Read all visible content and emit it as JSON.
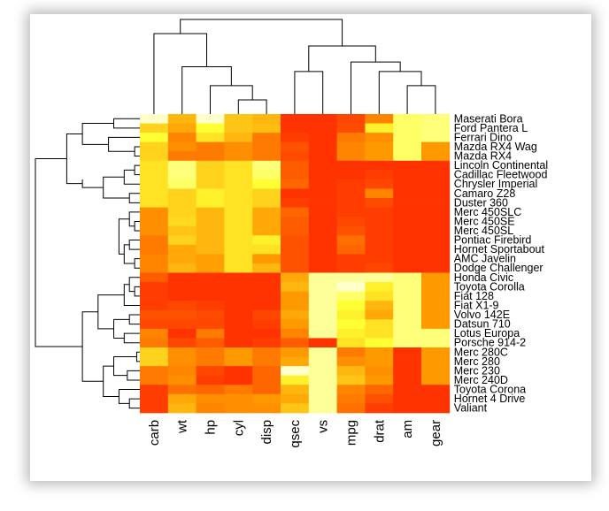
{
  "chart_data": {
    "type": "heatmap",
    "title": "",
    "xlabel": "",
    "ylabel": "",
    "columns": [
      "carb",
      "wt",
      "hp",
      "cyl",
      "disp",
      "qsec",
      "vs",
      "mpg",
      "drat",
      "am",
      "gear"
    ],
    "rows": [
      "Maserati Bora",
      "Ford Pantera L",
      "Ferrari Dino",
      "Mazda RX4 Wag",
      "Mazda RX4",
      "Lincoln Continental",
      "Cadillac Fleetwood",
      "Chrysler Imperial",
      "Camaro Z28",
      "Duster 360",
      "Merc 450SLC",
      "Merc 450SE",
      "Merc 450SL",
      "Pontiac Firebird",
      "Hornet Sportabout",
      "AMC Javelin",
      "Dodge Challenger",
      "Honda Civic",
      "Toyota Corolla",
      "Fiat 128",
      "Fiat X1-9",
      "Volvo 142E",
      "Datsun 710",
      "Lotus Europa",
      "Porsche 914-2",
      "Merc 280C",
      "Merc 280",
      "Merc 230",
      "Merc 240D",
      "Toyota Corona",
      "Hornet 4 Drive",
      "Valiant"
    ],
    "values": [
      [
        1.0,
        0.6,
        1.0,
        0.65,
        0.6,
        0.0,
        0.0,
        0.1,
        0.4,
        0.9,
        0.92
      ],
      [
        0.7,
        0.55,
        0.85,
        0.65,
        0.62,
        0.0,
        0.0,
        0.12,
        0.8,
        0.9,
        0.92
      ],
      [
        0.85,
        0.4,
        0.75,
        0.6,
        0.35,
        0.05,
        0.0,
        0.35,
        0.45,
        0.9,
        0.92
      ],
      [
        0.7,
        0.45,
        0.35,
        0.45,
        0.35,
        0.15,
        0.0,
        0.4,
        0.5,
        0.9,
        0.5
      ],
      [
        0.7,
        0.35,
        0.35,
        0.45,
        0.35,
        0.12,
        0.0,
        0.4,
        0.5,
        0.9,
        0.5
      ],
      [
        0.75,
        0.92,
        0.7,
        0.75,
        0.92,
        0.2,
        0.0,
        0.0,
        0.0,
        0.0,
        0.0
      ],
      [
        0.75,
        0.92,
        0.7,
        0.75,
        0.9,
        0.2,
        0.0,
        0.0,
        0.05,
        0.0,
        0.0
      ],
      [
        0.75,
        0.9,
        0.7,
        0.75,
        0.85,
        0.25,
        0.0,
        0.05,
        0.1,
        0.0,
        0.0
      ],
      [
        0.75,
        0.7,
        0.8,
        0.75,
        0.7,
        0.0,
        0.0,
        0.05,
        0.4,
        0.0,
        0.0
      ],
      [
        0.75,
        0.7,
        0.8,
        0.75,
        0.7,
        0.05,
        0.0,
        0.05,
        0.12,
        0.0,
        0.0
      ],
      [
        0.45,
        0.7,
        0.6,
        0.75,
        0.55,
        0.25,
        0.0,
        0.05,
        0.05,
        0.0,
        0.0
      ],
      [
        0.45,
        0.72,
        0.6,
        0.75,
        0.55,
        0.2,
        0.0,
        0.1,
        0.05,
        0.0,
        0.0
      ],
      [
        0.45,
        0.65,
        0.6,
        0.75,
        0.55,
        0.2,
        0.0,
        0.15,
        0.05,
        0.0,
        0.0
      ],
      [
        0.35,
        0.7,
        0.6,
        0.75,
        0.8,
        0.15,
        0.0,
        0.3,
        0.05,
        0.0,
        0.0
      ],
      [
        0.35,
        0.55,
        0.6,
        0.75,
        0.75,
        0.15,
        0.0,
        0.25,
        0.05,
        0.0,
        0.0
      ],
      [
        0.4,
        0.55,
        0.52,
        0.75,
        0.5,
        0.15,
        0.0,
        0.05,
        0.05,
        0.0,
        0.0
      ],
      [
        0.4,
        0.6,
        0.52,
        0.75,
        0.6,
        0.15,
        0.0,
        0.05,
        0.1,
        0.0,
        0.0
      ],
      [
        0.2,
        0.0,
        0.0,
        0.0,
        0.0,
        0.55,
        0.95,
        0.95,
        0.95,
        0.92,
        0.5
      ],
      [
        0.05,
        0.0,
        0.0,
        0.0,
        0.0,
        0.6,
        0.95,
        1.0,
        0.8,
        0.92,
        0.5
      ],
      [
        0.05,
        0.0,
        0.0,
        0.0,
        0.0,
        0.5,
        0.95,
        0.9,
        0.75,
        0.92,
        0.5
      ],
      [
        0.05,
        0.1,
        0.05,
        0.0,
        0.0,
        0.5,
        0.95,
        0.85,
        0.6,
        0.92,
        0.5
      ],
      [
        0.15,
        0.15,
        0.12,
        0.0,
        0.1,
        0.55,
        0.95,
        0.8,
        0.55,
        0.92,
        0.5
      ],
      [
        0.1,
        0.1,
        0.1,
        0.0,
        0.05,
        0.5,
        0.95,
        0.85,
        0.75,
        0.92,
        0.5
      ],
      [
        0.4,
        0.0,
        0.35,
        0.0,
        0.0,
        0.4,
        0.95,
        0.8,
        0.75,
        0.92,
        0.92
      ],
      [
        0.35,
        0.1,
        0.2,
        0.0,
        0.05,
        0.2,
        0.0,
        0.75,
        0.85,
        0.92,
        0.92
      ],
      [
        0.7,
        0.45,
        0.35,
        0.5,
        0.35,
        0.5,
        0.95,
        0.35,
        0.5,
        0.0,
        0.5
      ],
      [
        0.7,
        0.45,
        0.35,
        0.5,
        0.35,
        0.55,
        0.95,
        0.45,
        0.5,
        0.0,
        0.5
      ],
      [
        0.35,
        0.4,
        0.1,
        0.0,
        0.25,
        1.0,
        0.95,
        0.6,
        0.45,
        0.0,
        0.5
      ],
      [
        0.35,
        0.45,
        0.05,
        0.0,
        0.25,
        0.8,
        0.95,
        0.65,
        0.5,
        0.0,
        0.5
      ],
      [
        0.05,
        0.3,
        0.25,
        0.35,
        0.25,
        0.6,
        0.95,
        0.4,
        0.25,
        0.0,
        0.0
      ],
      [
        0.05,
        0.55,
        0.45,
        0.45,
        0.5,
        0.55,
        0.95,
        0.35,
        0.15,
        0.0,
        0.0
      ],
      [
        0.05,
        0.6,
        0.4,
        0.45,
        0.45,
        0.65,
        0.95,
        0.3,
        0.05,
        0.0,
        0.0
      ]
    ],
    "value_scale": "0 = red, 1 = pale yellow/white",
    "colors": {
      "low": "#ff3300",
      "mid": "#ff9900",
      "high": "#ffff33",
      "max": "#ffffcc"
    },
    "legend": "none",
    "grid": false
  }
}
